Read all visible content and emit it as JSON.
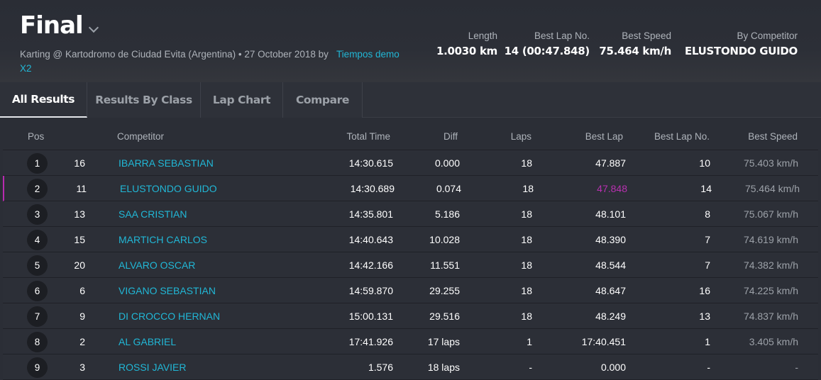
{
  "header": {
    "title": "Final",
    "subtitle_prefix": "Karting @ Kartodromo de Ciudad Evita (Argentina) • 27 October 2018 by",
    "subtitle_link": "Tiempos demo X2",
    "stats": [
      {
        "label": "Length",
        "value": "1.0030 km"
      },
      {
        "label": "Best Lap No.",
        "value": "14 (00:47.848)"
      },
      {
        "label": "Best Speed",
        "value": "75.464 km/h"
      },
      {
        "label": "By Competitor",
        "value": "ELUSTONDO GUIDO"
      }
    ]
  },
  "tabs": [
    {
      "label": "All Results",
      "active": true
    },
    {
      "label": "Results By Class",
      "active": false
    },
    {
      "label": "Lap Chart",
      "active": false
    },
    {
      "label": "Compare",
      "active": false
    }
  ],
  "table": {
    "headers": {
      "pos": "Pos",
      "competitor": "Competitor",
      "total_time": "Total Time",
      "diff": "Diff",
      "laps": "Laps",
      "best_lap": "Best Lap",
      "best_lap_no": "Best Lap No.",
      "best_speed": "Best Speed"
    },
    "rows": [
      {
        "pos": "1",
        "num": "16",
        "competitor": "IBARRA SEBASTIAN",
        "total_time": "14:30.615",
        "diff": "0.000",
        "laps": "18",
        "best_lap": "47.887",
        "best_lap_no": "10",
        "best_speed": "75.403 km/h"
      },
      {
        "pos": "2",
        "num": "11",
        "competitor": "ELUSTONDO GUIDO",
        "total_time": "14:30.689",
        "diff": "0.074",
        "laps": "18",
        "best_lap": "47.848",
        "best_lap_no": "14",
        "best_speed": "75.464 km/h"
      },
      {
        "pos": "3",
        "num": "13",
        "competitor": "SAA CRISTIAN",
        "total_time": "14:35.801",
        "diff": "5.186",
        "laps": "18",
        "best_lap": "48.101",
        "best_lap_no": "8",
        "best_speed": "75.067 km/h"
      },
      {
        "pos": "4",
        "num": "15",
        "competitor": "MARTICH CARLOS",
        "total_time": "14:40.643",
        "diff": "10.028",
        "laps": "18",
        "best_lap": "48.390",
        "best_lap_no": "7",
        "best_speed": "74.619 km/h"
      },
      {
        "pos": "5",
        "num": "20",
        "competitor": "ALVARO OSCAR",
        "total_time": "14:42.166",
        "diff": "11.551",
        "laps": "18",
        "best_lap": "48.544",
        "best_lap_no": "7",
        "best_speed": "74.382 km/h"
      },
      {
        "pos": "6",
        "num": "6",
        "competitor": "VIGANO SEBASTIAN",
        "total_time": "14:59.870",
        "diff": "29.255",
        "laps": "18",
        "best_lap": "48.647",
        "best_lap_no": "16",
        "best_speed": "74.225 km/h"
      },
      {
        "pos": "7",
        "num": "9",
        "competitor": "DI CROCCO HERNAN",
        "total_time": "15:00.131",
        "diff": "29.516",
        "laps": "18",
        "best_lap": "48.249",
        "best_lap_no": "13",
        "best_speed": "74.837 km/h"
      },
      {
        "pos": "8",
        "num": "2",
        "competitor": "AL GABRIEL",
        "total_time": "17:41.926",
        "diff": "17 laps",
        "laps": "1",
        "best_lap": "17:40.451",
        "best_lap_no": "1",
        "best_speed": "3.405 km/h"
      },
      {
        "pos": "9",
        "num": "3",
        "competitor": "ROSSI JAVIER",
        "total_time": "1.576",
        "diff": "18 laps",
        "laps": "-",
        "best_lap": "0.000",
        "best_lap_no": "-",
        "best_speed": "-"
      }
    ]
  },
  "colors": {
    "accent": "#21b7d6",
    "best_lap_highlight": "#b830b0",
    "background": "#2b2e36"
  }
}
